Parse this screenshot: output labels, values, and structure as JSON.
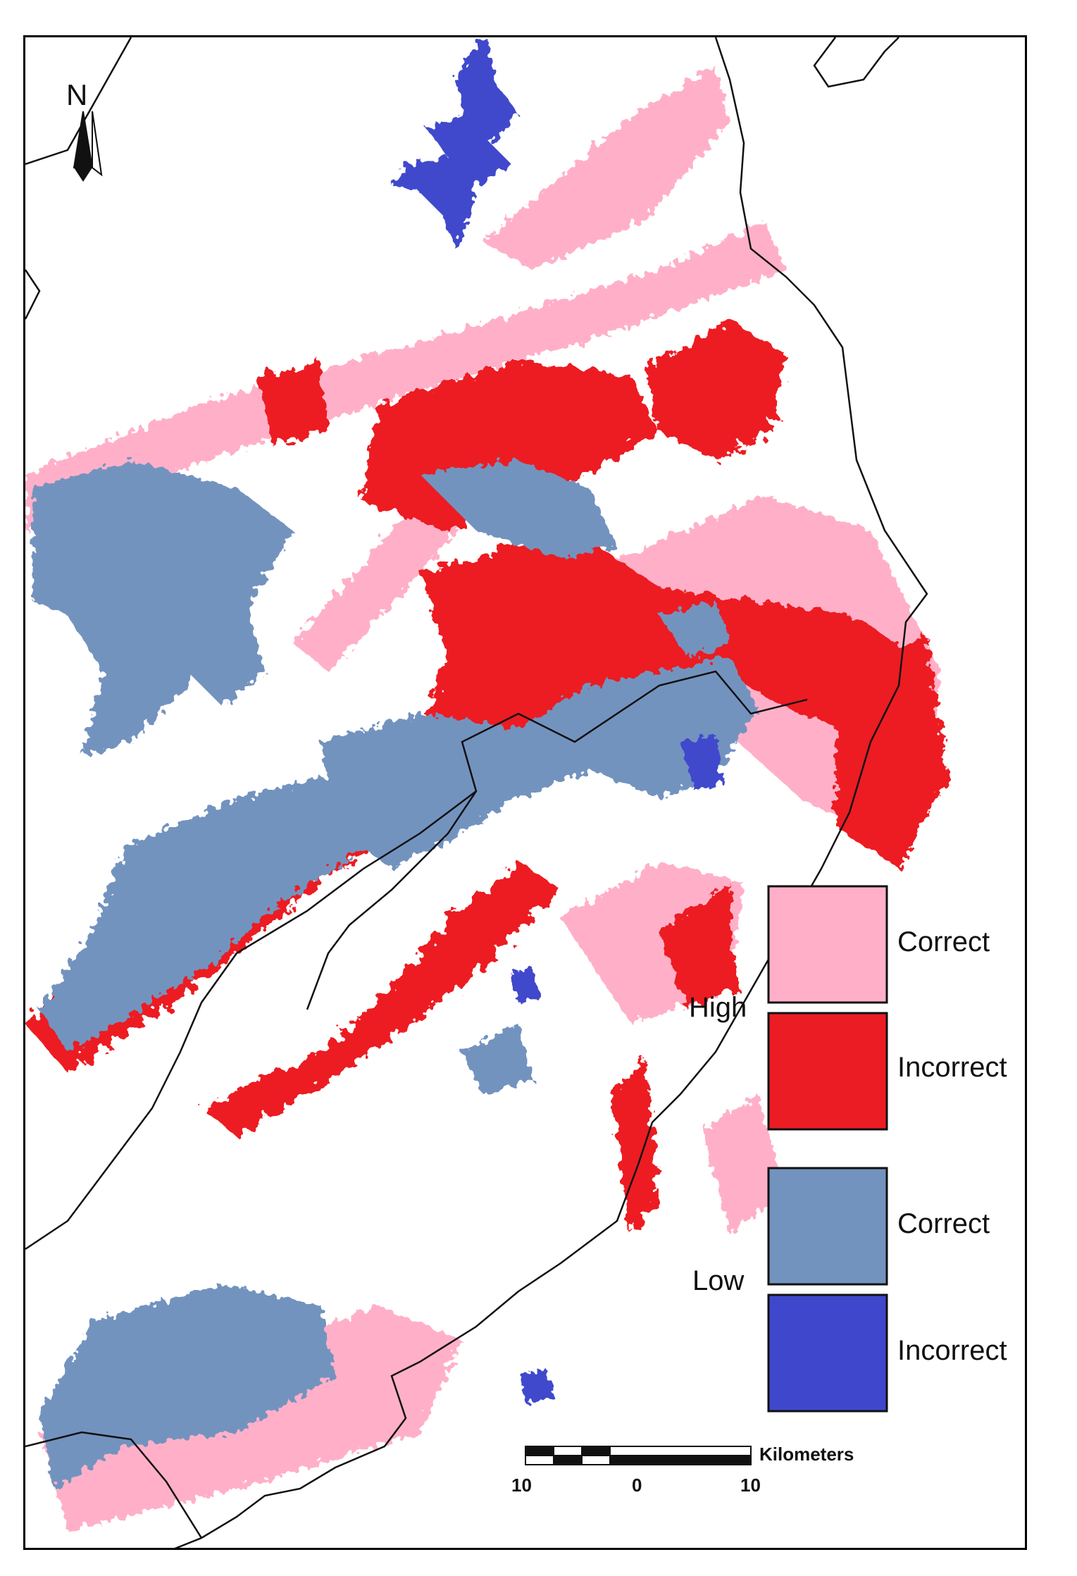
{
  "north_arrow": {
    "label": "N"
  },
  "legend": {
    "groups": [
      {
        "label": "High",
        "items": [
          {
            "label": "Correct",
            "color": "#ffb0c8"
          },
          {
            "label": "Incorrect",
            "color": "#ec1c24"
          }
        ]
      },
      {
        "label": "Low",
        "items": [
          {
            "label": "Correct",
            "color": "#7393bf"
          },
          {
            "label": "Incorrect",
            "color": "#3f48cc"
          }
        ]
      }
    ]
  },
  "scale_bar": {
    "unit": "Kilometers",
    "labels": [
      "10",
      "0",
      "10"
    ]
  }
}
